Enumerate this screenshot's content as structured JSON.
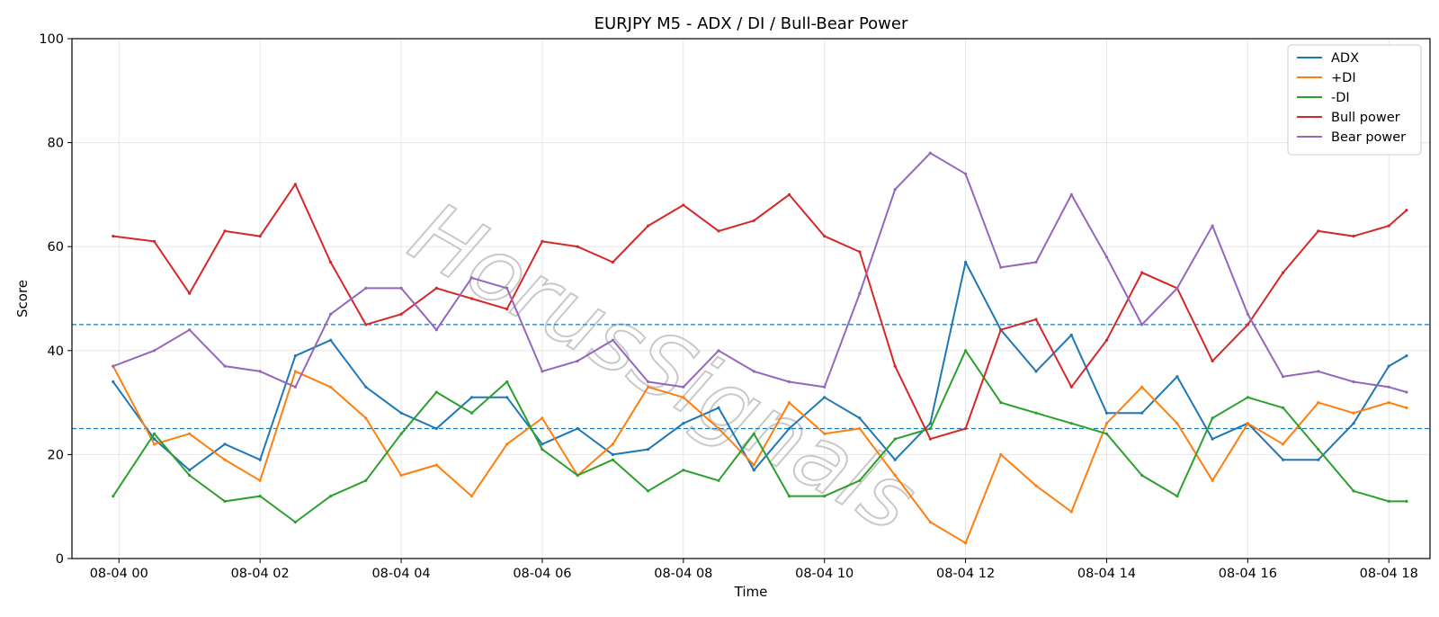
{
  "watermark": "HorusSignals",
  "chart_data": {
    "type": "line",
    "title": "EURJPY M5 - ADX / DI / Bull-Bear Power",
    "xlabel": "Time",
    "ylabel": "Score",
    "ylim": [
      0,
      100
    ],
    "yticks": [
      0,
      20,
      40,
      60,
      80,
      100
    ],
    "xlim": [
      "08-03 23:20",
      "08-04 18:35"
    ],
    "xticks": [
      "08-04 00",
      "08-04 02",
      "08-04 04",
      "08-04 06",
      "08-04 08",
      "08-04 10",
      "08-04 12",
      "08-04 14",
      "08-04 16",
      "08-04 18"
    ],
    "grid": true,
    "legend_position": "top-right",
    "hlines": [
      45,
      25
    ],
    "hline_color": "#1f77b4",
    "x": [
      "08-03 23:55",
      "08-04 00:30",
      "08-04 01:00",
      "08-04 01:30",
      "08-04 02:00",
      "08-04 02:30",
      "08-04 03:00",
      "08-04 03:30",
      "08-04 04:00",
      "08-04 04:30",
      "08-04 05:00",
      "08-04 05:30",
      "08-04 06:00",
      "08-04 06:30",
      "08-04 07:00",
      "08-04 07:30",
      "08-04 08:00",
      "08-04 08:30",
      "08-04 09:00",
      "08-04 09:30",
      "08-04 10:00",
      "08-04 10:30",
      "08-04 11:00",
      "08-04 11:30",
      "08-04 12:00",
      "08-04 12:30",
      "08-04 13:00",
      "08-04 13:30",
      "08-04 14:00",
      "08-04 14:30",
      "08-04 15:00",
      "08-04 15:30",
      "08-04 16:00",
      "08-04 16:30",
      "08-04 17:00",
      "08-04 17:30",
      "08-04 18:00",
      "08-04 18:15"
    ],
    "series": [
      {
        "name": "ADX",
        "color": "#1f77b4",
        "values": [
          34,
          23,
          17,
          22,
          19,
          39,
          42,
          33,
          28,
          25,
          31,
          31,
          22,
          25,
          20,
          21,
          26,
          29,
          17,
          25,
          31,
          27,
          19,
          26,
          57,
          44,
          36,
          43,
          28,
          28,
          35,
          23,
          26,
          19,
          19,
          26,
          37,
          39
        ]
      },
      {
        "name": "+DI",
        "color": "#ff7f0e",
        "values": [
          37,
          22,
          24,
          19,
          15,
          36,
          33,
          27,
          16,
          18,
          12,
          22,
          27,
          16,
          22,
          33,
          31,
          25,
          18,
          30,
          24,
          25,
          16,
          7,
          3,
          20,
          14,
          9,
          26,
          33,
          26,
          15,
          26,
          22,
          30,
          28,
          30,
          29
        ]
      },
      {
        "name": "-DI",
        "color": "#2ca02c",
        "values": [
          12,
          24,
          16,
          11,
          12,
          7,
          12,
          15,
          24,
          32,
          28,
          34,
          21,
          16,
          19,
          13,
          17,
          15,
          24,
          12,
          12,
          15,
          23,
          25,
          40,
          30,
          28,
          26,
          24,
          16,
          12,
          27,
          31,
          29,
          21,
          13,
          11,
          11
        ]
      },
      {
        "name": "Bull power",
        "color": "#d62728",
        "values": [
          62,
          61,
          51,
          63,
          62,
          72,
          57,
          45,
          47,
          52,
          50,
          48,
          61,
          60,
          57,
          64,
          68,
          63,
          65,
          70,
          62,
          59,
          37,
          23,
          25,
          44,
          46,
          33,
          42,
          55,
          52,
          38,
          45,
          55,
          63,
          62,
          64,
          67
        ]
      },
      {
        "name": "Bear power",
        "color": "#9467bd",
        "values": [
          37,
          40,
          44,
          37,
          36,
          33,
          47,
          52,
          52,
          44,
          54,
          52,
          36,
          38,
          42,
          34,
          33,
          40,
          36,
          34,
          33,
          51,
          71,
          78,
          74,
          56,
          57,
          70,
          58,
          45,
          52,
          64,
          47,
          35,
          36,
          34,
          33,
          32
        ]
      }
    ]
  }
}
